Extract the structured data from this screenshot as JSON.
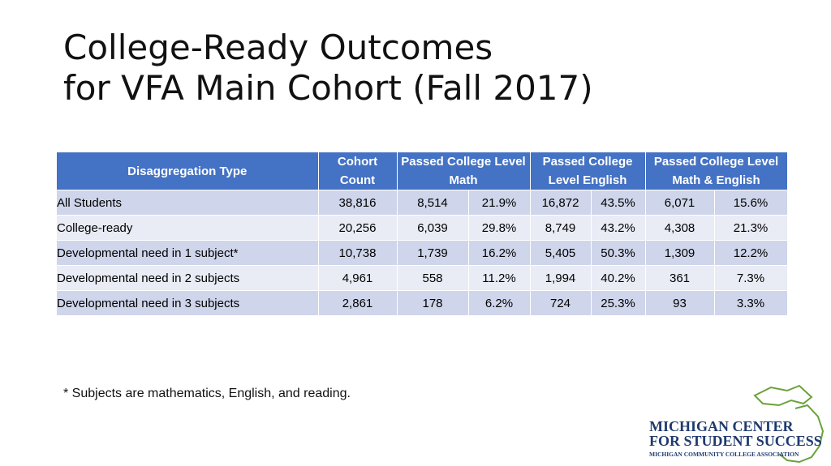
{
  "title": [
    "College-Ready Outcomes",
    "for VFA Main Cohort (Fall 2017)"
  ],
  "table": {
    "header": [
      "Disaggregation Type",
      "Cohort Count",
      "Passed College Level Math",
      "Passed College Level English",
      "Passed College Level Math & English"
    ],
    "rows": [
      [
        "All Students",
        "38,816",
        "8,514",
        "21.9%",
        "16,872",
        "43.5%",
        "6,071",
        "15.6%"
      ],
      [
        "College-ready",
        "20,256",
        "6,039",
        "29.8%",
        "8,749",
        "43.2%",
        "4,308",
        "21.3%"
      ],
      [
        "Developmental need in 1 subject*",
        "10,738",
        "1,739",
        "16.2%",
        "5,405",
        "50.3%",
        "1,309",
        "12.2%"
      ],
      [
        "Developmental need in 2 subjects",
        "4,961",
        "558",
        "11.2%",
        "1,994",
        "40.2%",
        "361",
        "7.3%"
      ],
      [
        "Developmental need in 3 subjects",
        "2,861",
        "178",
        "6.2%",
        "724",
        "25.3%",
        "93",
        "3.3%"
      ]
    ]
  },
  "footnote": "* Subjects are mathematics, English, and reading.",
  "logo": {
    "line1": "MICHIGAN CENTER",
    "line2": "FOR STUDENT SUCCESS",
    "line3": "MICHIGAN COMMUNITY COLLEGE ASSOCIATION"
  }
}
